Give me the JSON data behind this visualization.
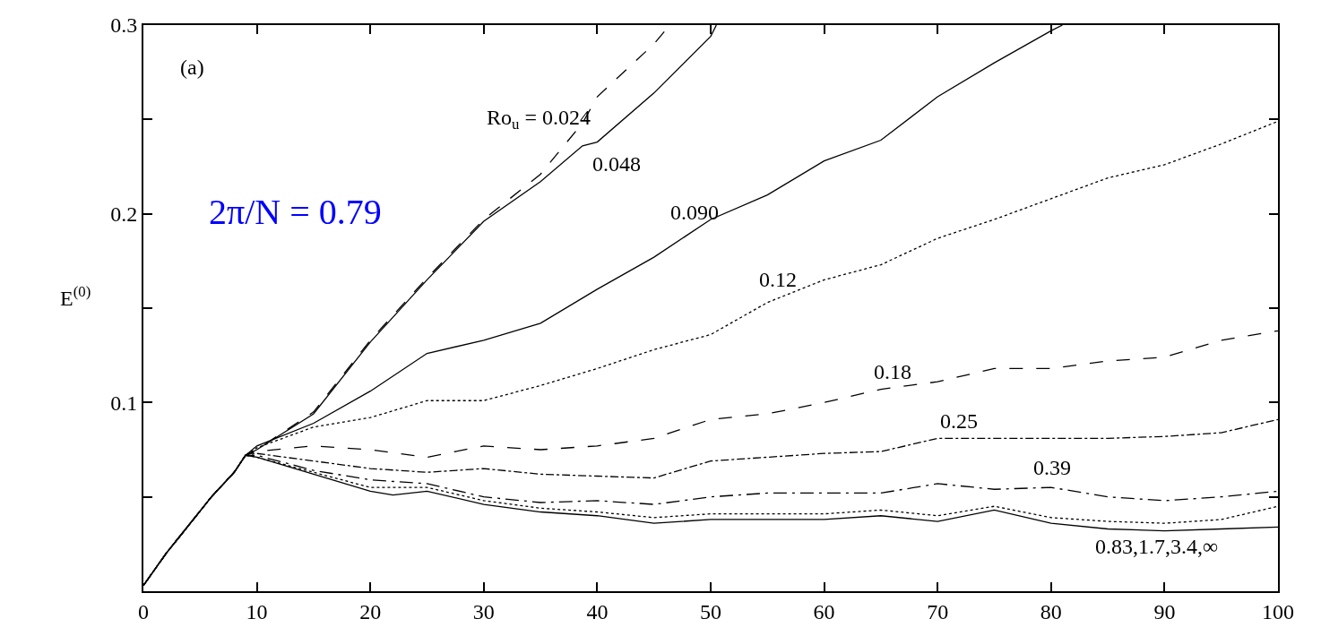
{
  "chart_data": {
    "type": "line",
    "ylabel": "E$^{(0)}$",
    "xlim": [
      0,
      100
    ],
    "ylim": [
      0,
      0.3
    ],
    "xticks": [
      0,
      10,
      20,
      30,
      40,
      50,
      60,
      70,
      80,
      90,
      100
    ],
    "yticks": [
      {
        "value": 0,
        "label": null
      },
      {
        "value": 0.05,
        "label": null
      },
      0.1,
      {
        "value": 0.15,
        "label": null
      },
      0.2,
      {
        "value": 0.25,
        "label": null
      },
      0.3
    ],
    "annotations": [
      "(a)",
      "2π/N = 0.79",
      "Ro$_{u}$ = 0.024",
      "0.048",
      "0.090",
      "0.12",
      "0.18",
      "0.25",
      "0.39",
      "0.83,1.7,3.4,∞"
    ],
    "series": [
      {
        "color": "#000000",
        "line_style": "dashed",
        "x": [
          0,
          2,
          4,
          6,
          8,
          9,
          10,
          15,
          20,
          25,
          30,
          35,
          38.7,
          40,
          45,
          46.4
        ],
        "values": [
          0.003,
          0.02,
          0.035,
          0.05,
          0.063,
          0.072,
          0.075,
          0.095,
          0.133,
          0.166,
          0.197,
          0.221,
          0.248,
          0.262,
          0.29,
          0.3
        ]
      },
      {
        "color": "#000000",
        "line_style": "solid",
        "x": [
          0,
          2,
          4,
          6,
          8,
          9,
          10,
          15,
          20,
          25,
          30,
          35,
          38.7,
          40,
          45,
          50,
          50.5
        ],
        "values": [
          0.003,
          0.02,
          0.035,
          0.05,
          0.063,
          0.072,
          0.075,
          0.094,
          0.132,
          0.165,
          0.196,
          0.217,
          0.236,
          0.238,
          0.264,
          0.294,
          0.3
        ]
      },
      {
        "color": "#000000",
        "line_style": "solid",
        "x": [
          0,
          2,
          4,
          6,
          8,
          9,
          10,
          15,
          20,
          25,
          30,
          35,
          40,
          45,
          50,
          55,
          60,
          65,
          70,
          75,
          80,
          81
        ],
        "values": [
          0.003,
          0.02,
          0.035,
          0.05,
          0.063,
          0.072,
          0.077,
          0.089,
          0.106,
          0.126,
          0.133,
          0.142,
          0.16,
          0.177,
          0.197,
          0.21,
          0.228,
          0.239,
          0.262,
          0.28,
          0.297,
          0.3
        ]
      },
      {
        "color": "#000000",
        "line_style": "dotted",
        "x": [
          0,
          2,
          4,
          6,
          8,
          9,
          10,
          15,
          20,
          25,
          30,
          35,
          40,
          45,
          50,
          55,
          60,
          65,
          70,
          75,
          80,
          85,
          90,
          95,
          100
        ],
        "values": [
          0.003,
          0.02,
          0.035,
          0.05,
          0.063,
          0.072,
          0.076,
          0.087,
          0.092,
          0.101,
          0.101,
          0.109,
          0.118,
          0.128,
          0.136,
          0.153,
          0.165,
          0.173,
          0.187,
          0.197,
          0.208,
          0.219,
          0.226,
          0.237,
          0.249
        ]
      },
      {
        "color": "#000000",
        "line_style": "dashed",
        "x": [
          0,
          2,
          4,
          6,
          8,
          9,
          10,
          15,
          20,
          25,
          30,
          35,
          40,
          45,
          50,
          55,
          60,
          65,
          70,
          75,
          80,
          85,
          90,
          95,
          100
        ],
        "values": [
          0.003,
          0.02,
          0.035,
          0.05,
          0.063,
          0.072,
          0.074,
          0.077,
          0.075,
          0.071,
          0.077,
          0.075,
          0.077,
          0.081,
          0.091,
          0.094,
          0.1,
          0.107,
          0.111,
          0.118,
          0.118,
          0.122,
          0.124,
          0.133,
          0.138
        ]
      },
      {
        "color": "#000000",
        "line_style": "dashdot",
        "x": [
          0,
          2,
          4,
          6,
          8,
          9,
          10,
          15,
          20,
          25,
          30,
          35,
          40,
          45,
          50,
          55,
          60,
          65,
          70,
          75,
          80,
          85,
          90,
          95,
          100
        ],
        "values": [
          0.003,
          0.02,
          0.035,
          0.05,
          0.063,
          0.072,
          0.073,
          0.069,
          0.065,
          0.063,
          0.065,
          0.062,
          0.061,
          0.06,
          0.069,
          0.071,
          0.073,
          0.074,
          0.081,
          0.081,
          0.081,
          0.081,
          0.082,
          0.084,
          0.091
        ]
      },
      {
        "color": "#000000",
        "line_style": "longdashdot",
        "x": [
          0,
          2,
          4,
          6,
          8,
          9,
          10,
          15,
          20,
          25,
          30,
          35,
          40,
          45,
          50,
          55,
          60,
          65,
          70,
          75,
          80,
          85,
          90,
          95,
          100
        ],
        "values": [
          0.003,
          0.02,
          0.035,
          0.05,
          0.063,
          0.072,
          0.072,
          0.064,
          0.059,
          0.057,
          0.05,
          0.047,
          0.048,
          0.046,
          0.05,
          0.052,
          0.052,
          0.052,
          0.057,
          0.054,
          0.055,
          0.05,
          0.048,
          0.05,
          0.053
        ]
      },
      {
        "color": "#000000",
        "line_style": "dotted",
        "x": [
          0,
          2,
          4,
          6,
          8,
          9,
          10,
          15,
          20,
          25,
          30,
          35,
          40,
          45,
          50,
          55,
          60,
          65,
          70,
          75,
          80,
          85,
          90,
          95,
          100
        ],
        "values": [
          0.003,
          0.02,
          0.035,
          0.05,
          0.063,
          0.072,
          0.071,
          0.063,
          0.055,
          0.055,
          0.048,
          0.044,
          0.042,
          0.039,
          0.041,
          0.041,
          0.041,
          0.043,
          0.04,
          0.045,
          0.039,
          0.037,
          0.036,
          0.038,
          0.045
        ]
      },
      {
        "color": "#000000",
        "line_style": "solid",
        "x": [
          0,
          2,
          4,
          6,
          8,
          9,
          10,
          15,
          20,
          22,
          25,
          30,
          35,
          40,
          45,
          50,
          55,
          60,
          65,
          70,
          75,
          80,
          85,
          90,
          95,
          100
        ],
        "values": [
          0.003,
          0.02,
          0.035,
          0.05,
          0.063,
          0.072,
          0.071,
          0.062,
          0.053,
          0.051,
          0.053,
          0.046,
          0.042,
          0.04,
          0.036,
          0.038,
          0.038,
          0.038,
          0.04,
          0.037,
          0.043,
          0.036,
          0.033,
          0.032,
          0.033,
          0.034
        ]
      }
    ]
  }
}
